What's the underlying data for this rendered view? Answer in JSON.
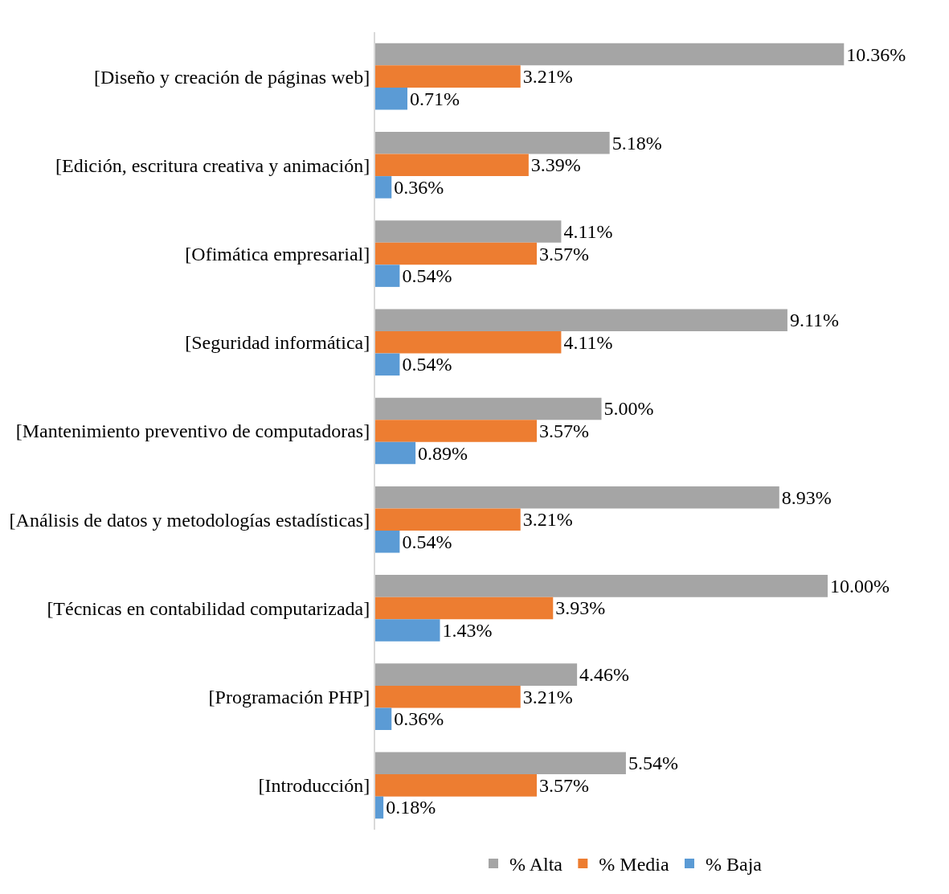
{
  "chart_data": {
    "type": "bar",
    "orientation": "horizontal",
    "tick_labels": "y",
    "legend": "bottom",
    "categories": [
      "[Diseño y creación de páginas web]",
      "[Edición, escritura creativa y animación]",
      "[Ofimática empresarial]",
      "[Seguridad informática]",
      "[Mantenimiento preventivo de computadoras]",
      "[Análisis de datos y metodologías estadísticas]",
      "[Técnicas en contabilidad computarizada]",
      "[Programación PHP]",
      "[Introducción]"
    ],
    "series": [
      {
        "name": "% Alta",
        "color": "#a5a5a5",
        "values": [
          10.36,
          5.18,
          4.11,
          9.11,
          5.0,
          8.93,
          10.0,
          4.46,
          5.54
        ],
        "value_labels": [
          "10.36%",
          "5.18%",
          "4.11%",
          "9.11%",
          "5.00%",
          "8.93%",
          "10.00%",
          "4.46%",
          "5.54%"
        ]
      },
      {
        "name": "% Media",
        "color": "#ed7d31",
        "values": [
          3.21,
          3.39,
          3.57,
          4.11,
          3.57,
          3.21,
          3.93,
          3.21,
          3.57
        ],
        "value_labels": [
          "3.21%",
          "3.39%",
          "3.57%",
          "4.11%",
          "3.57%",
          "3.21%",
          "3.93%",
          "3.21%",
          "3.57%"
        ]
      },
      {
        "name": "% Baja",
        "color": "#5b9bd5",
        "values": [
          0.71,
          0.36,
          0.54,
          0.54,
          0.89,
          0.54,
          1.43,
          0.36,
          0.18
        ],
        "value_labels": [
          "0.71%",
          "0.36%",
          "0.54%",
          "0.54%",
          "0.89%",
          "0.54%",
          "1.43%",
          "0.36%",
          "0.18%"
        ]
      }
    ]
  }
}
